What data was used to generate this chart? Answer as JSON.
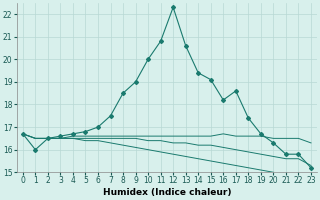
{
  "xlabel": "Humidex (Indice chaleur)",
  "x": [
    0,
    1,
    2,
    3,
    4,
    5,
    6,
    7,
    8,
    9,
    10,
    11,
    12,
    13,
    14,
    15,
    16,
    17,
    18,
    19,
    20,
    21,
    22,
    23
  ],
  "series": [
    [
      16.7,
      16.0,
      16.5,
      16.6,
      16.7,
      16.8,
      17.0,
      17.5,
      18.5,
      19.0,
      20.0,
      20.8,
      22.3,
      20.6,
      19.4,
      19.1,
      18.2,
      18.6,
      17.4,
      16.7,
      16.3,
      15.8,
      15.8,
      15.2
    ],
    [
      16.7,
      16.5,
      16.5,
      16.5,
      16.6,
      16.6,
      16.6,
      16.6,
      16.6,
      16.6,
      16.6,
      16.6,
      16.6,
      16.6,
      16.6,
      16.6,
      16.7,
      16.6,
      16.6,
      16.6,
      16.5,
      16.5,
      16.5,
      16.3
    ],
    [
      16.7,
      16.5,
      16.5,
      16.5,
      16.5,
      16.5,
      16.5,
      16.5,
      16.5,
      16.5,
      16.4,
      16.4,
      16.3,
      16.3,
      16.2,
      16.2,
      16.1,
      16.0,
      15.9,
      15.8,
      15.7,
      15.6,
      15.6,
      15.3
    ],
    [
      16.7,
      16.5,
      16.5,
      16.5,
      16.5,
      16.4,
      16.4,
      16.3,
      16.2,
      16.1,
      16.0,
      15.9,
      15.8,
      15.7,
      15.6,
      15.5,
      15.4,
      15.3,
      15.2,
      15.1,
      15.0,
      14.9,
      14.9,
      14.7
    ]
  ],
  "line_color": "#1a7a6e",
  "marker": "D",
  "marker_size": 2,
  "bg_color": "#d8f0ec",
  "grid_color": "#b8d8d4",
  "ylim": [
    15,
    22.5
  ],
  "yticks": [
    15,
    16,
    17,
    18,
    19,
    20,
    21,
    22
  ],
  "xticks": [
    0,
    1,
    2,
    3,
    4,
    5,
    6,
    7,
    8,
    9,
    10,
    11,
    12,
    13,
    14,
    15,
    16,
    17,
    18,
    19,
    20,
    21,
    22,
    23
  ],
  "tick_fontsize": 5.5,
  "xlabel_fontsize": 6.5
}
